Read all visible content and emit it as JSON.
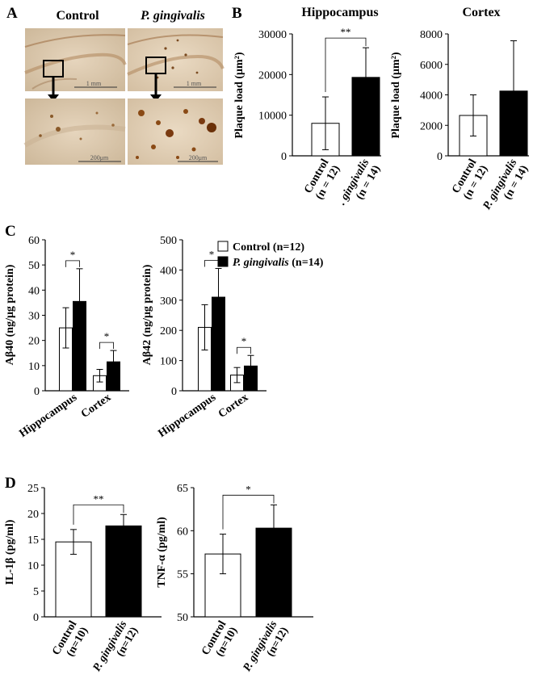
{
  "panels": {
    "a": {
      "letter": "A",
      "columns": [
        "Control",
        "P. gingivalis"
      ],
      "scale_top": "1 mm",
      "scale_bottom": "200μm"
    },
    "b": {
      "letter": "B"
    },
    "c": {
      "letter": "C"
    },
    "d": {
      "letter": "D"
    }
  },
  "legend": {
    "control": "Control (n=12)",
    "pg_italic": "P. gingivalis",
    "pg_rest": " (n=14)"
  },
  "colors": {
    "control": "#ffffff",
    "pg": "#000000",
    "axis": "#000000"
  },
  "chart_data": [
    {
      "id": "b_hippocampus",
      "type": "bar",
      "title": "Hippocampus",
      "ylabel": "Plaque load (μm²)",
      "ylim": [
        0,
        30000
      ],
      "yticks": [
        "0",
        "10000",
        "20000",
        "30000"
      ],
      "categories": [
        {
          "l1": "Control",
          "l2": "(n = 12)"
        },
        {
          "l1": ". gingivalis",
          "l2": "(n = 14)"
        }
      ],
      "values": [
        8000,
        19300
      ],
      "errors": [
        6500,
        7300
      ],
      "significance": [
        {
          "label": "**"
        }
      ]
    },
    {
      "id": "b_cortex",
      "type": "bar",
      "title": "Cortex",
      "ylabel": "Plaque load (μm²)",
      "ylim": [
        0,
        8000
      ],
      "yticks": [
        "0",
        "2000",
        "4000",
        "6000",
        "8000"
      ],
      "categories": [
        {
          "l1": "Control",
          "l2": "(n = 12)"
        },
        {
          "l1": "P. gingivalis",
          "l2": "(n = 14)"
        }
      ],
      "values": [
        2650,
        4250
      ],
      "errors": [
        1350,
        3300
      ],
      "significance": []
    },
    {
      "id": "c_abeta40",
      "type": "bar",
      "ylabel": "Aβ40 (ng/μg protein)",
      "ylim": [
        0,
        60
      ],
      "yticks": [
        "0",
        "10",
        "20",
        "30",
        "40",
        "50",
        "60"
      ],
      "groups": [
        "Hippocampus",
        "Cortex"
      ],
      "series": [
        {
          "name": "Control (n=12)",
          "values": [
            25,
            6
          ],
          "errors": [
            8,
            2.5
          ]
        },
        {
          "name": "P. gingivalis (n=14)",
          "values": [
            35.5,
            11.5
          ],
          "errors": [
            13,
            4.5
          ]
        }
      ],
      "significance": [
        {
          "label": "*"
        },
        {
          "label": "*"
        }
      ]
    },
    {
      "id": "c_abeta42",
      "type": "bar",
      "ylabel": "Aβ42 (ng/μg protein)",
      "ylim": [
        0,
        500
      ],
      "yticks": [
        "0",
        "100",
        "200",
        "300",
        "400",
        "500"
      ],
      "groups": [
        "Hippocampus",
        "Cortex"
      ],
      "series": [
        {
          "name": "Control (n=12)",
          "values": [
            210,
            52
          ],
          "errors": [
            75,
            25
          ]
        },
        {
          "name": "P. gingivalis (n=14)",
          "values": [
            310,
            82
          ],
          "errors": [
            95,
            35
          ]
        }
      ],
      "significance": [
        {
          "label": "*"
        },
        {
          "label": "*"
        }
      ]
    },
    {
      "id": "d_il1b",
      "type": "bar",
      "ylabel": "IL-1β (pg/ml)",
      "ylim": [
        0,
        25
      ],
      "yticks": [
        "0",
        "5",
        "10",
        "15",
        "20",
        "25"
      ],
      "categories": [
        {
          "l1": "Control",
          "l2": "(n=10)"
        },
        {
          "l1": "P. gingivalis",
          "l2": "(n=12)"
        }
      ],
      "values": [
        14.5,
        17.6
      ],
      "errors": [
        2.4,
        2.2
      ],
      "significance": [
        {
          "label": "**"
        }
      ]
    },
    {
      "id": "d_tnfa",
      "type": "bar",
      "ylabel": "TNF-α (pg/ml)",
      "ylim": [
        50,
        65
      ],
      "yticks": [
        "50",
        "55",
        "60",
        "65"
      ],
      "categories": [
        {
          "l1": "Control",
          "l2": "(n=10)"
        },
        {
          "l1": "P. gingivalis",
          "l2": "(n=12)"
        }
      ],
      "values": [
        57.3,
        60.3
      ],
      "errors": [
        2.3,
        2.7
      ],
      "significance": [
        {
          "label": "*"
        }
      ]
    }
  ]
}
